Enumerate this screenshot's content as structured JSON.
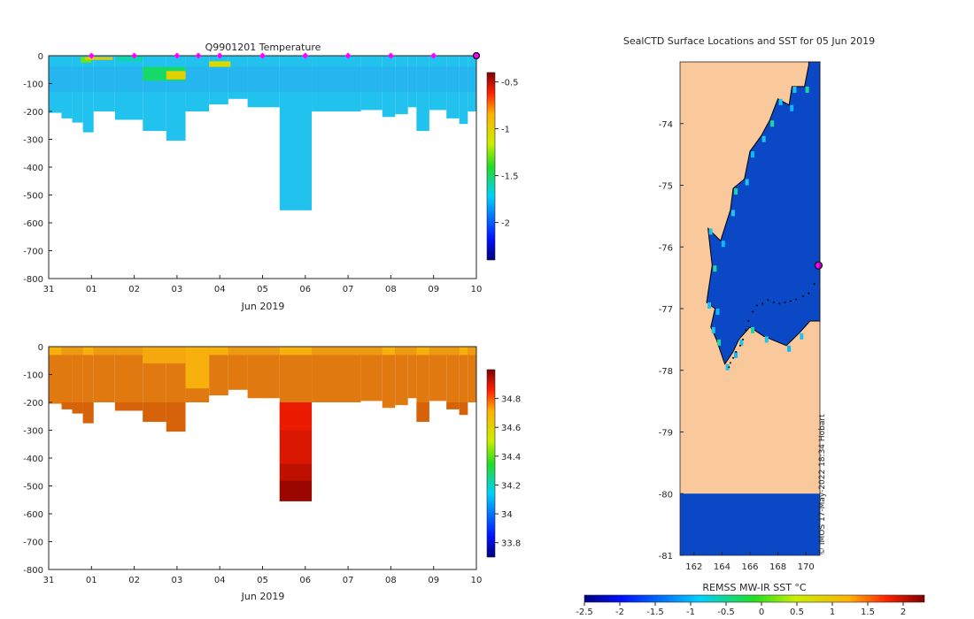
{
  "colors": {
    "land": "#f9c99b",
    "profile_cold": "#22c2ee",
    "profile_mid": "#2aaef0",
    "sal_main": "#e07a10",
    "sal_fresh": "#f8b10c",
    "sal_salty": "#cd4f06",
    "sal_deep": "#c22d04",
    "sst_ice": "#0a48c6",
    "stations": "#ff00ff",
    "coast": "#000000"
  },
  "chart_data": [
    {
      "type": "heatmap",
      "id": "temperature_section",
      "title": "Q9901201  Temperature",
      "xlabel": "Jun 2019",
      "ylabel": "",
      "x_ticks": [
        "31",
        "01",
        "02",
        "03",
        "04",
        "05",
        "06",
        "07",
        "08",
        "09",
        "10"
      ],
      "x_range_days": [
        0,
        10
      ],
      "y_ticks": [
        0,
        -100,
        -200,
        -300,
        -400,
        -500,
        -600,
        -700,
        -800
      ],
      "ylim": [
        -800,
        0
      ],
      "colorbar": {
        "ticks": [
          "-0.5",
          "-1",
          "-1.5",
          "-2"
        ],
        "range": [
          -2.4,
          -0.4
        ],
        "colormap": "jet"
      },
      "profile_columns": [
        {
          "start_day": 0.0,
          "end_day": 0.3,
          "max_depth": 205
        },
        {
          "start_day": 0.3,
          "end_day": 0.55,
          "max_depth": 225
        },
        {
          "start_day": 0.55,
          "end_day": 0.8,
          "max_depth": 240
        },
        {
          "start_day": 0.8,
          "end_day": 1.05,
          "max_depth": 275
        },
        {
          "start_day": 1.05,
          "end_day": 1.55,
          "max_depth": 200
        },
        {
          "start_day": 1.55,
          "end_day": 2.2,
          "max_depth": 230
        },
        {
          "start_day": 2.2,
          "end_day": 2.75,
          "max_depth": 270
        },
        {
          "start_day": 2.75,
          "end_day": 3.2,
          "max_depth": 305
        },
        {
          "start_day": 3.2,
          "end_day": 3.75,
          "max_depth": 200
        },
        {
          "start_day": 3.75,
          "end_day": 4.2,
          "max_depth": 175
        },
        {
          "start_day": 4.2,
          "end_day": 4.65,
          "max_depth": 155
        },
        {
          "start_day": 4.65,
          "end_day": 5.4,
          "max_depth": 185
        },
        {
          "start_day": 5.4,
          "end_day": 6.15,
          "max_depth": 555
        },
        {
          "start_day": 6.15,
          "end_day": 7.3,
          "max_depth": 200
        },
        {
          "start_day": 7.3,
          "end_day": 7.8,
          "max_depth": 195
        },
        {
          "start_day": 7.8,
          "end_day": 8.1,
          "max_depth": 220
        },
        {
          "start_day": 8.1,
          "end_day": 8.4,
          "max_depth": 210
        },
        {
          "start_day": 8.4,
          "end_day": 8.6,
          "max_depth": 185
        },
        {
          "start_day": 8.6,
          "end_day": 8.9,
          "max_depth": 270
        },
        {
          "start_day": 8.9,
          "end_day": 9.3,
          "max_depth": 195
        },
        {
          "start_day": 9.3,
          "end_day": 9.6,
          "max_depth": 225
        },
        {
          "start_day": 9.6,
          "end_day": 9.8,
          "max_depth": 245
        },
        {
          "start_day": 9.8,
          "end_day": 10.0,
          "max_depth": 200
        }
      ],
      "warm_patches": [
        {
          "start_day": 0.75,
          "end_day": 1.0,
          "top_depth": 5,
          "bottom_depth": 25,
          "value": -1.3
        },
        {
          "start_day": 0.85,
          "end_day": 1.5,
          "top_depth": 5,
          "bottom_depth": 15,
          "value": -0.95
        },
        {
          "start_day": 1.6,
          "end_day": 2.2,
          "top_depth": 0,
          "bottom_depth": 20,
          "value": -1.6
        },
        {
          "start_day": 2.2,
          "end_day": 3.2,
          "top_depth": 40,
          "bottom_depth": 90,
          "value": -1.5
        },
        {
          "start_day": 2.75,
          "end_day": 3.2,
          "top_depth": 55,
          "bottom_depth": 85,
          "value": -1.0
        },
        {
          "start_day": 3.75,
          "end_day": 4.25,
          "top_depth": 20,
          "bottom_depth": 40,
          "value": -1.05
        }
      ],
      "station_markers_days": [
        1.0,
        2.0,
        3.0,
        3.5,
        4.0,
        5.0,
        6.0,
        7.0,
        8.0,
        9.0,
        10.0
      ],
      "current_station_day": 10.0
    },
    {
      "type": "heatmap",
      "id": "salinity_section",
      "title": "",
      "xlabel": "Jun 2019",
      "ylabel": "",
      "x_ticks": [
        "31",
        "01",
        "02",
        "03",
        "04",
        "05",
        "06",
        "07",
        "08",
        "09",
        "10"
      ],
      "x_range_days": [
        0,
        10
      ],
      "y_ticks": [
        0,
        -100,
        -200,
        -300,
        -400,
        -500,
        -600,
        -700,
        -800
      ],
      "ylim": [
        -800,
        0
      ],
      "colorbar": {
        "ticks": [
          "34.8",
          "34.6",
          "34.4",
          "34.2",
          "34",
          "33.8"
        ],
        "range": [
          33.7,
          35.0
        ],
        "colormap": "jet"
      },
      "deep_gradient_column": {
        "start_day": 5.4,
        "end_day": 6.15,
        "bands": [
          {
            "top_depth": 200,
            "bottom_depth": 300,
            "value": 34.88
          },
          {
            "top_depth": 300,
            "bottom_depth": 420,
            "value": 34.9
          },
          {
            "top_depth": 420,
            "bottom_depth": 480,
            "value": 34.93
          },
          {
            "top_depth": 480,
            "bottom_depth": 555,
            "value": 34.97
          }
        ]
      }
    },
    {
      "type": "heatmap",
      "id": "sst_map",
      "title": "SealCTD Surface Locations and SST for 05 Jun 2019",
      "xlabel": "REMSS MW-IR SST °C",
      "lon_ticks": [
        "162",
        "164",
        "166",
        "168",
        "170"
      ],
      "lon_range": [
        161,
        171
      ],
      "lat_ticks": [
        "-74",
        "-75",
        "-76",
        "-77",
        "-78",
        "-79",
        "-80",
        "-81"
      ],
      "lat_range": [
        -81,
        -73
      ],
      "colorbar": {
        "ticks": [
          "-2.5",
          "-2",
          "-1.5",
          "-1",
          "-0.5",
          "0",
          "0.5",
          "1",
          "1.5",
          "2"
        ],
        "range": [
          -2.5,
          2.3
        ],
        "colormap": "jet"
      },
      "no_data_below_lat": -80,
      "coastline": [
        [
          170.2,
          -73.05
        ],
        [
          169.9,
          -73.4
        ],
        [
          169.0,
          -73.4
        ],
        [
          168.8,
          -73.7
        ],
        [
          168.0,
          -73.6
        ],
        [
          167.4,
          -73.95
        ],
        [
          166.8,
          -74.2
        ],
        [
          166.0,
          -74.45
        ],
        [
          165.6,
          -74.9
        ],
        [
          164.8,
          -75.05
        ],
        [
          164.6,
          -75.4
        ],
        [
          163.9,
          -75.9
        ],
        [
          163.0,
          -75.7
        ],
        [
          163.3,
          -76.3
        ],
        [
          162.9,
          -76.9
        ],
        [
          163.5,
          -77.0
        ],
        [
          163.2,
          -77.3
        ],
        [
          163.6,
          -77.5
        ],
        [
          164.2,
          -77.9
        ],
        [
          164.8,
          -77.7
        ],
        [
          165.2,
          -77.5
        ],
        [
          166.0,
          -77.3
        ],
        [
          167.0,
          -77.45
        ],
        [
          168.6,
          -77.6
        ],
        [
          169.5,
          -77.4
        ],
        [
          170.3,
          -77.2
        ]
      ],
      "current_location": {
        "lon": 170.9,
        "lat": -76.3
      },
      "track": [
        [
          170.6,
          -76.6
        ],
        [
          170.2,
          -76.75
        ],
        [
          169.8,
          -76.8
        ],
        [
          169.3,
          -76.85
        ],
        [
          168.9,
          -76.88
        ],
        [
          168.5,
          -76.9
        ],
        [
          168.1,
          -76.92
        ],
        [
          167.7,
          -76.9
        ],
        [
          167.3,
          -76.86
        ],
        [
          166.9,
          -76.92
        ],
        [
          166.5,
          -76.95
        ],
        [
          166.2,
          -77.05
        ],
        [
          165.9,
          -77.2
        ],
        [
          165.7,
          -77.35
        ],
        [
          165.5,
          -77.5
        ],
        [
          165.3,
          -77.6
        ],
        [
          165.0,
          -77.7
        ],
        [
          164.8,
          -77.8
        ],
        [
          164.6,
          -77.88
        ],
        [
          164.5,
          -77.95
        ]
      ],
      "credit": "© IMOS 17-May-2022 18:34 Hobart"
    }
  ]
}
